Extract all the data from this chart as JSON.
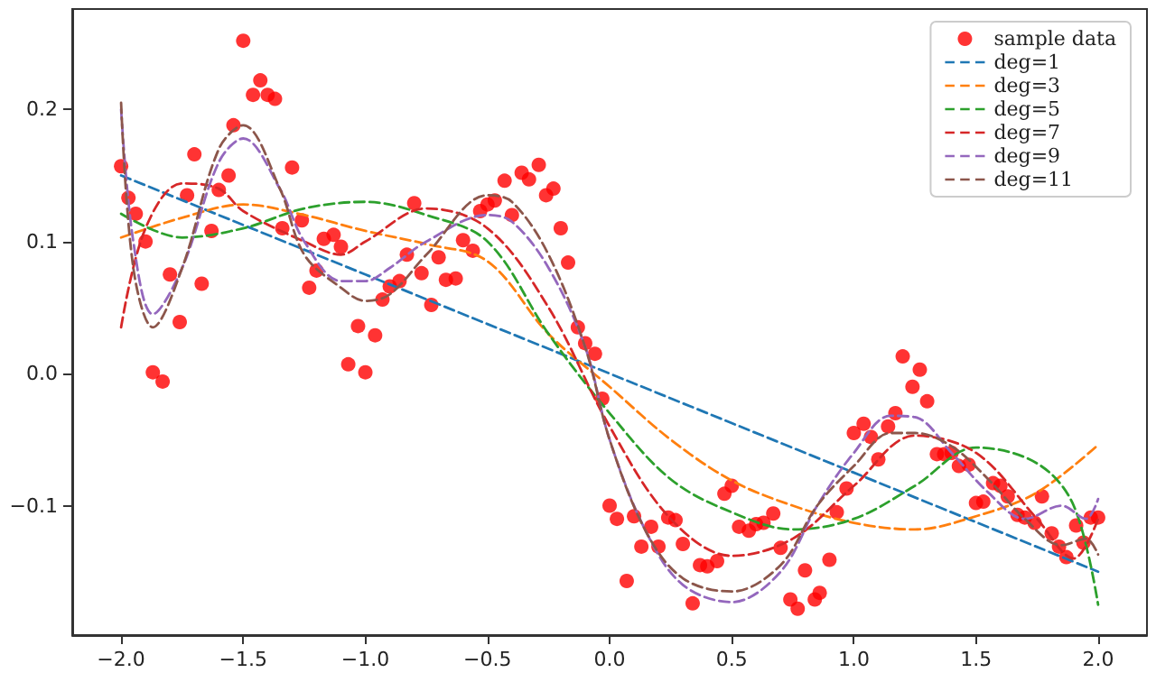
{
  "chart_data": {
    "type": "scatter",
    "xlim": [
      -2.2,
      2.2
    ],
    "ylim": [
      -0.198,
      0.276
    ],
    "xticks": [
      {
        "value": -2,
        "label": "−2.0"
      },
      {
        "value": -1.5,
        "label": "−1.5"
      },
      {
        "value": -1,
        "label": "−1.0"
      },
      {
        "value": -0.5,
        "label": "−0.5"
      },
      {
        "value": 0,
        "label": "0.0"
      },
      {
        "value": 0.5,
        "label": "0.5"
      },
      {
        "value": 1,
        "label": "1.0"
      },
      {
        "value": 1.5,
        "label": "1.5"
      },
      {
        "value": 2,
        "label": "2.0"
      }
    ],
    "yticks": [
      {
        "value": -0.1,
        "label": "−0.1"
      },
      {
        "value": 0,
        "label": "0.0"
      },
      {
        "value": 0.1,
        "label": "0.1"
      },
      {
        "value": 0.2,
        "label": "0.2"
      }
    ],
    "grid": false,
    "legend": "top right",
    "line_style": "dashed",
    "series": [
      {
        "name": "sample data",
        "marker": "circle",
        "color": "#ff0000",
        "x": [
          -2.0,
          -1.97,
          -1.94,
          -1.9,
          -1.87,
          -1.83,
          -1.8,
          -1.76,
          -1.73,
          -1.7,
          -1.67,
          -1.63,
          -1.6,
          -1.56,
          -1.54,
          -1.5,
          -1.46,
          -1.43,
          -1.4,
          -1.37,
          -1.34,
          -1.3,
          -1.26,
          -1.23,
          -1.2,
          -1.17,
          -1.13,
          -1.1,
          -1.07,
          -1.03,
          -1.0,
          -0.96,
          -0.93,
          -0.9,
          -0.86,
          -0.83,
          -0.8,
          -0.77,
          -0.73,
          -0.7,
          -0.67,
          -0.63,
          -0.6,
          -0.56,
          -0.53,
          -0.5,
          -0.47,
          -0.43,
          -0.4,
          -0.36,
          -0.33,
          -0.29,
          -0.26,
          -0.23,
          -0.2,
          -0.17,
          -0.13,
          -0.1,
          -0.06,
          -0.03,
          0.0,
          0.03,
          0.07,
          0.1,
          0.13,
          0.17,
          0.2,
          0.24,
          0.27,
          0.3,
          0.34,
          0.37,
          0.4,
          0.44,
          0.47,
          0.5,
          0.53,
          0.57,
          0.6,
          0.63,
          0.67,
          0.7,
          0.74,
          0.77,
          0.8,
          0.84,
          0.86,
          0.9,
          0.93,
          0.97,
          1.0,
          1.04,
          1.07,
          1.1,
          1.14,
          1.17,
          1.2,
          1.24,
          1.27,
          1.3,
          1.34,
          1.37,
          1.4,
          1.43,
          1.47,
          1.5,
          1.53,
          1.57,
          1.6,
          1.63,
          1.67,
          1.7,
          1.74,
          1.77,
          1.81,
          1.84,
          1.87,
          1.91,
          1.94,
          1.97,
          2.0
        ],
        "values": [
          0.157,
          0.133,
          0.121,
          0.1,
          0.001,
          -0.006,
          0.075,
          0.039,
          0.135,
          0.166,
          0.068,
          0.108,
          0.139,
          0.15,
          0.188,
          0.252,
          0.211,
          0.222,
          0.211,
          0.208,
          0.11,
          0.156,
          0.116,
          0.065,
          0.078,
          0.102,
          0.105,
          0.096,
          0.007,
          0.036,
          0.001,
          0.029,
          0.056,
          0.066,
          0.07,
          0.09,
          0.129,
          0.076,
          0.052,
          0.088,
          0.071,
          0.072,
          0.101,
          0.093,
          0.123,
          0.128,
          0.131,
          0.146,
          0.12,
          0.152,
          0.147,
          0.158,
          0.135,
          0.14,
          0.11,
          0.084,
          0.035,
          0.023,
          0.015,
          -0.019,
          -0.1,
          -0.11,
          -0.157,
          -0.108,
          -0.131,
          -0.116,
          -0.131,
          -0.109,
          -0.111,
          -0.129,
          -0.174,
          -0.145,
          -0.146,
          -0.142,
          -0.091,
          -0.085,
          -0.116,
          -0.119,
          -0.114,
          -0.113,
          -0.106,
          -0.132,
          -0.171,
          -0.178,
          -0.149,
          -0.171,
          -0.166,
          -0.141,
          -0.105,
          -0.087,
          -0.045,
          -0.038,
          -0.048,
          -0.065,
          -0.04,
          -0.03,
          0.013,
          -0.01,
          0.003,
          -0.021,
          -0.061,
          -0.061,
          -0.06,
          -0.07,
          -0.069,
          -0.098,
          -0.097,
          -0.083,
          -0.085,
          -0.093,
          -0.107,
          -0.109,
          -0.113,
          -0.093,
          -0.121,
          -0.131,
          -0.139,
          -0.115,
          -0.128,
          -0.109,
          -0.109
        ]
      },
      {
        "name": "deg=1",
        "type": "line",
        "marker": "none",
        "color": "#1f77b4",
        "x": [
          -2,
          -1,
          0,
          1,
          2
        ],
        "values": [
          0.15,
          0.075,
          0.0,
          -0.075,
          -0.15
        ]
      },
      {
        "name": "deg=3",
        "type": "line",
        "marker": "none",
        "color": "#ff7f0e",
        "x": [
          -2,
          -1.75,
          -1.5,
          -1.25,
          -1,
          -0.75,
          -0.5,
          -0.25,
          0,
          0.25,
          0.5,
          0.75,
          1,
          1.25,
          1.5,
          1.75,
          2
        ],
        "values": [
          0.103,
          0.118,
          0.128,
          0.12,
          0.108,
          0.098,
          0.085,
          0.03,
          -0.01,
          -0.05,
          -0.081,
          -0.1,
          -0.113,
          -0.118,
          -0.108,
          -0.09,
          -0.054
        ]
      },
      {
        "name": "deg=5",
        "type": "line",
        "marker": "none",
        "color": "#2ca02c",
        "x": [
          -2,
          -1.75,
          -1.5,
          -1.25,
          -1,
          -0.75,
          -0.5,
          -0.25,
          0,
          0.25,
          0.5,
          0.75,
          1,
          1.25,
          1.5,
          1.75,
          1.9,
          2
        ],
        "values": [
          0.121,
          0.103,
          0.11,
          0.125,
          0.13,
          0.12,
          0.1,
          0.03,
          -0.03,
          -0.08,
          -0.105,
          -0.118,
          -0.11,
          -0.085,
          -0.056,
          -0.068,
          -0.1,
          -0.175
        ]
      },
      {
        "name": "deg=7",
        "type": "line",
        "marker": "none",
        "color": "#d62728",
        "x": [
          -2,
          -1.9,
          -1.75,
          -1.6,
          -1.5,
          -1.25,
          -1.1,
          -1,
          -0.75,
          -0.5,
          -0.25,
          0,
          0.25,
          0.5,
          0.75,
          1,
          1.25,
          1.5,
          1.75,
          1.9,
          2
        ],
        "values": [
          0.035,
          0.11,
          0.144,
          0.14,
          0.123,
          0.1,
          0.09,
          0.1,
          0.125,
          0.11,
          0.05,
          -0.04,
          -0.11,
          -0.138,
          -0.125,
          -0.085,
          -0.047,
          -0.06,
          -0.11,
          -0.14,
          -0.11
        ]
      },
      {
        "name": "deg=9",
        "type": "line",
        "marker": "none",
        "color": "#9467bd",
        "x": [
          -2,
          -1.95,
          -1.87,
          -1.75,
          -1.6,
          -1.5,
          -1.35,
          -1.25,
          -1.1,
          -1,
          -0.9,
          -0.75,
          -0.5,
          -0.4,
          -0.25,
          -0.1,
          0,
          0.15,
          0.3,
          0.5,
          0.7,
          0.85,
          1,
          1.15,
          1.25,
          1.4,
          1.55,
          1.7,
          1.85,
          1.95,
          2
        ],
        "values": [
          0.2,
          0.1,
          0.045,
          0.08,
          0.16,
          0.178,
          0.14,
          0.1,
          0.07,
          0.07,
          0.08,
          0.1,
          0.12,
          0.115,
          0.08,
          0.02,
          -0.05,
          -0.12,
          -0.16,
          -0.173,
          -0.15,
          -0.1,
          -0.06,
          -0.032,
          -0.033,
          -0.06,
          -0.09,
          -0.11,
          -0.1,
          -0.11,
          -0.095
        ]
      },
      {
        "name": "deg=11",
        "type": "line",
        "marker": "none",
        "color": "#8c564b",
        "x": [
          -2,
          -1.95,
          -1.87,
          -1.75,
          -1.6,
          -1.5,
          -1.35,
          -1.25,
          -1.1,
          -1,
          -0.9,
          -0.75,
          -0.5,
          -0.4,
          -0.25,
          -0.1,
          0,
          0.15,
          0.3,
          0.5,
          0.7,
          0.85,
          1,
          1.15,
          1.25,
          1.4,
          1.55,
          1.7,
          1.85,
          1.95,
          2
        ],
        "values": [
          0.205,
          0.08,
          0.035,
          0.08,
          0.17,
          0.188,
          0.14,
          0.09,
          0.065,
          0.055,
          0.06,
          0.09,
          0.135,
          0.13,
          0.09,
          0.02,
          -0.05,
          -0.12,
          -0.155,
          -0.165,
          -0.145,
          -0.1,
          -0.07,
          -0.045,
          -0.045,
          -0.055,
          -0.08,
          -0.11,
          -0.13,
          -0.125,
          -0.137
        ]
      }
    ]
  }
}
